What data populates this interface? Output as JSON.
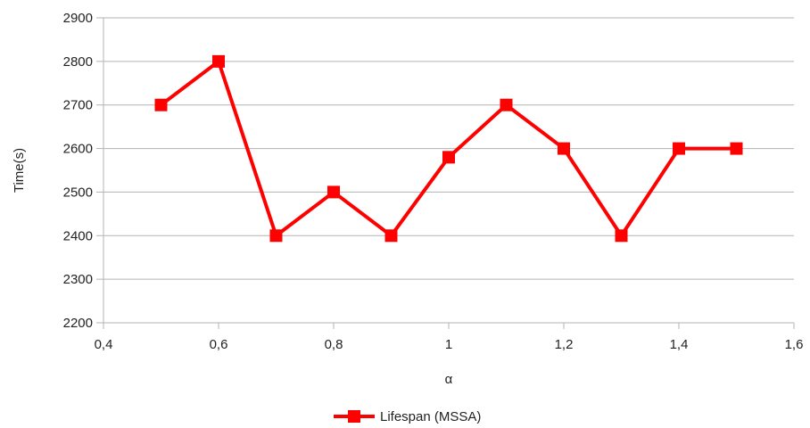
{
  "chart_data": {
    "type": "line",
    "title": "",
    "xlabel": "α",
    "ylabel": "Time(s)",
    "xlim": [
      0.4,
      1.6
    ],
    "ylim": [
      2200,
      2900
    ],
    "x_ticks": [
      0.4,
      0.6,
      0.8,
      1.0,
      1.2,
      1.4,
      1.6
    ],
    "x_tick_labels": [
      "0,4",
      "0,6",
      "0,8",
      "1",
      "1,2",
      "1,4",
      "1,6"
    ],
    "y_ticks": [
      2200,
      2300,
      2400,
      2500,
      2600,
      2700,
      2800,
      2900
    ],
    "y_tick_labels": [
      "2200",
      "2300",
      "2400",
      "2500",
      "2600",
      "2700",
      "2800",
      "2900"
    ],
    "grid": "horizontal",
    "legend_position": "bottom-center",
    "series": [
      {
        "name": "Lifespan (MSSA)",
        "color": "#ff0000",
        "marker": "square",
        "x": [
          0.5,
          0.6,
          0.7,
          0.8,
          0.9,
          1.0,
          1.1,
          1.2,
          1.3,
          1.4,
          1.5
        ],
        "values": [
          2700,
          2800,
          2400,
          2500,
          2400,
          2580,
          2700,
          2600,
          2400,
          2600,
          2600
        ]
      }
    ]
  }
}
